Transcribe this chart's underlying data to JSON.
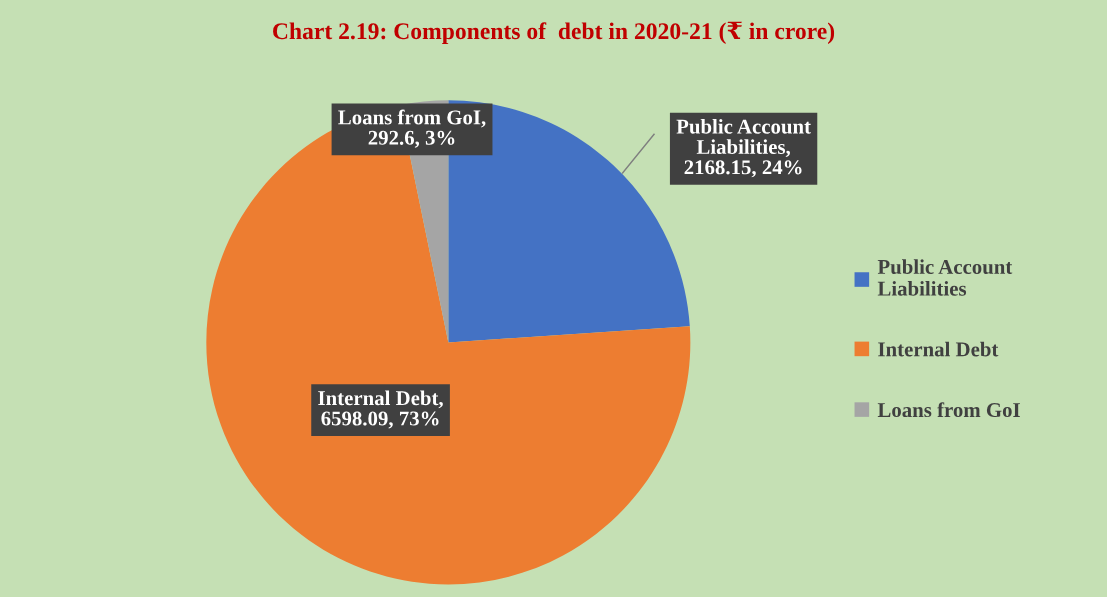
{
  "chart_data": {
    "type": "pie",
    "title": "Chart 2.19: Components of  debt in 2020-21 (₹ in crore)",
    "categories": [
      "Public Account Liabilities",
      "Internal Debt",
      "Loans from GoI"
    ],
    "values": [
      2168.15,
      6598.09,
      292.6
    ],
    "colors": [
      "#4472c4",
      "#ed7d31",
      "#a5a5a5"
    ],
    "value_labels": [
      "Public Account Liabilities, 2168.15, 24%",
      "Internal Debt, 6598.09, 73%",
      "Loans from GoI, 292.6, 3%"
    ],
    "legend": "right"
  }
}
